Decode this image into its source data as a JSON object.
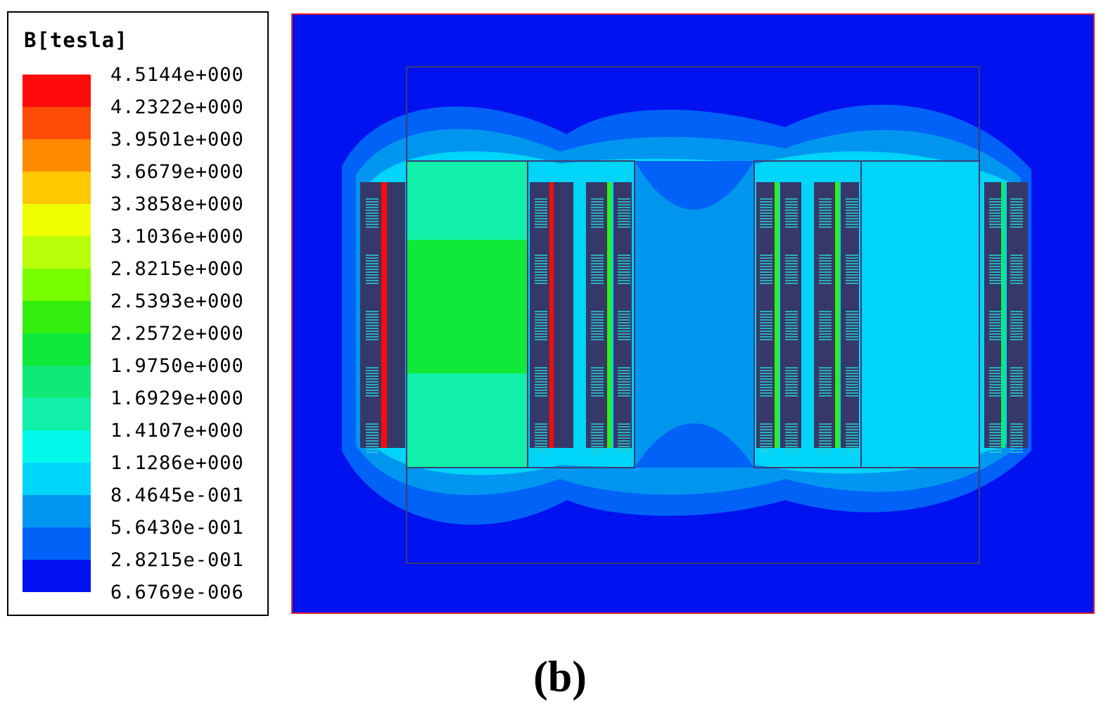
{
  "legend": {
    "title": "B[tesla]",
    "levels": [
      {
        "value": "4.5144e+000",
        "color": "#ff0a0a"
      },
      {
        "value": "4.2322e+000",
        "color": "#ff4a05"
      },
      {
        "value": "3.9501e+000",
        "color": "#ff8a00"
      },
      {
        "value": "3.6679e+000",
        "color": "#ffc800"
      },
      {
        "value": "3.3858e+000",
        "color": "#f0ff00"
      },
      {
        "value": "3.1036e+000",
        "color": "#b8ff0a"
      },
      {
        "value": "2.8215e+000",
        "color": "#78ff00"
      },
      {
        "value": "2.5393e+000",
        "color": "#32ef10"
      },
      {
        "value": "2.2572e+000",
        "color": "#10e83a"
      },
      {
        "value": "1.9750e+000",
        "color": "#10e878"
      },
      {
        "value": "1.6929e+000",
        "color": "#10f0a8"
      },
      {
        "value": "1.4107e+000",
        "color": "#00f8e8"
      },
      {
        "value": "1.1286e+000",
        "color": "#00d4f8"
      },
      {
        "value": "8.4645e-001",
        "color": "#0096f0"
      },
      {
        "value": "5.6430e-001",
        "color": "#0062f6"
      },
      {
        "value": "2.8215e-001",
        "color": "#0010f0"
      },
      {
        "value": "6.6769e-006",
        "color": ""
      }
    ]
  },
  "plot": {
    "colors": {
      "background": "#0012f0",
      "border": "#e0202a",
      "outline": "#3a3d72",
      "winding": "#36386a",
      "leg_left": "#10e860",
      "leg_right": "#00d0f4",
      "window_mid": "#0096f0"
    }
  },
  "caption": "(b)"
}
